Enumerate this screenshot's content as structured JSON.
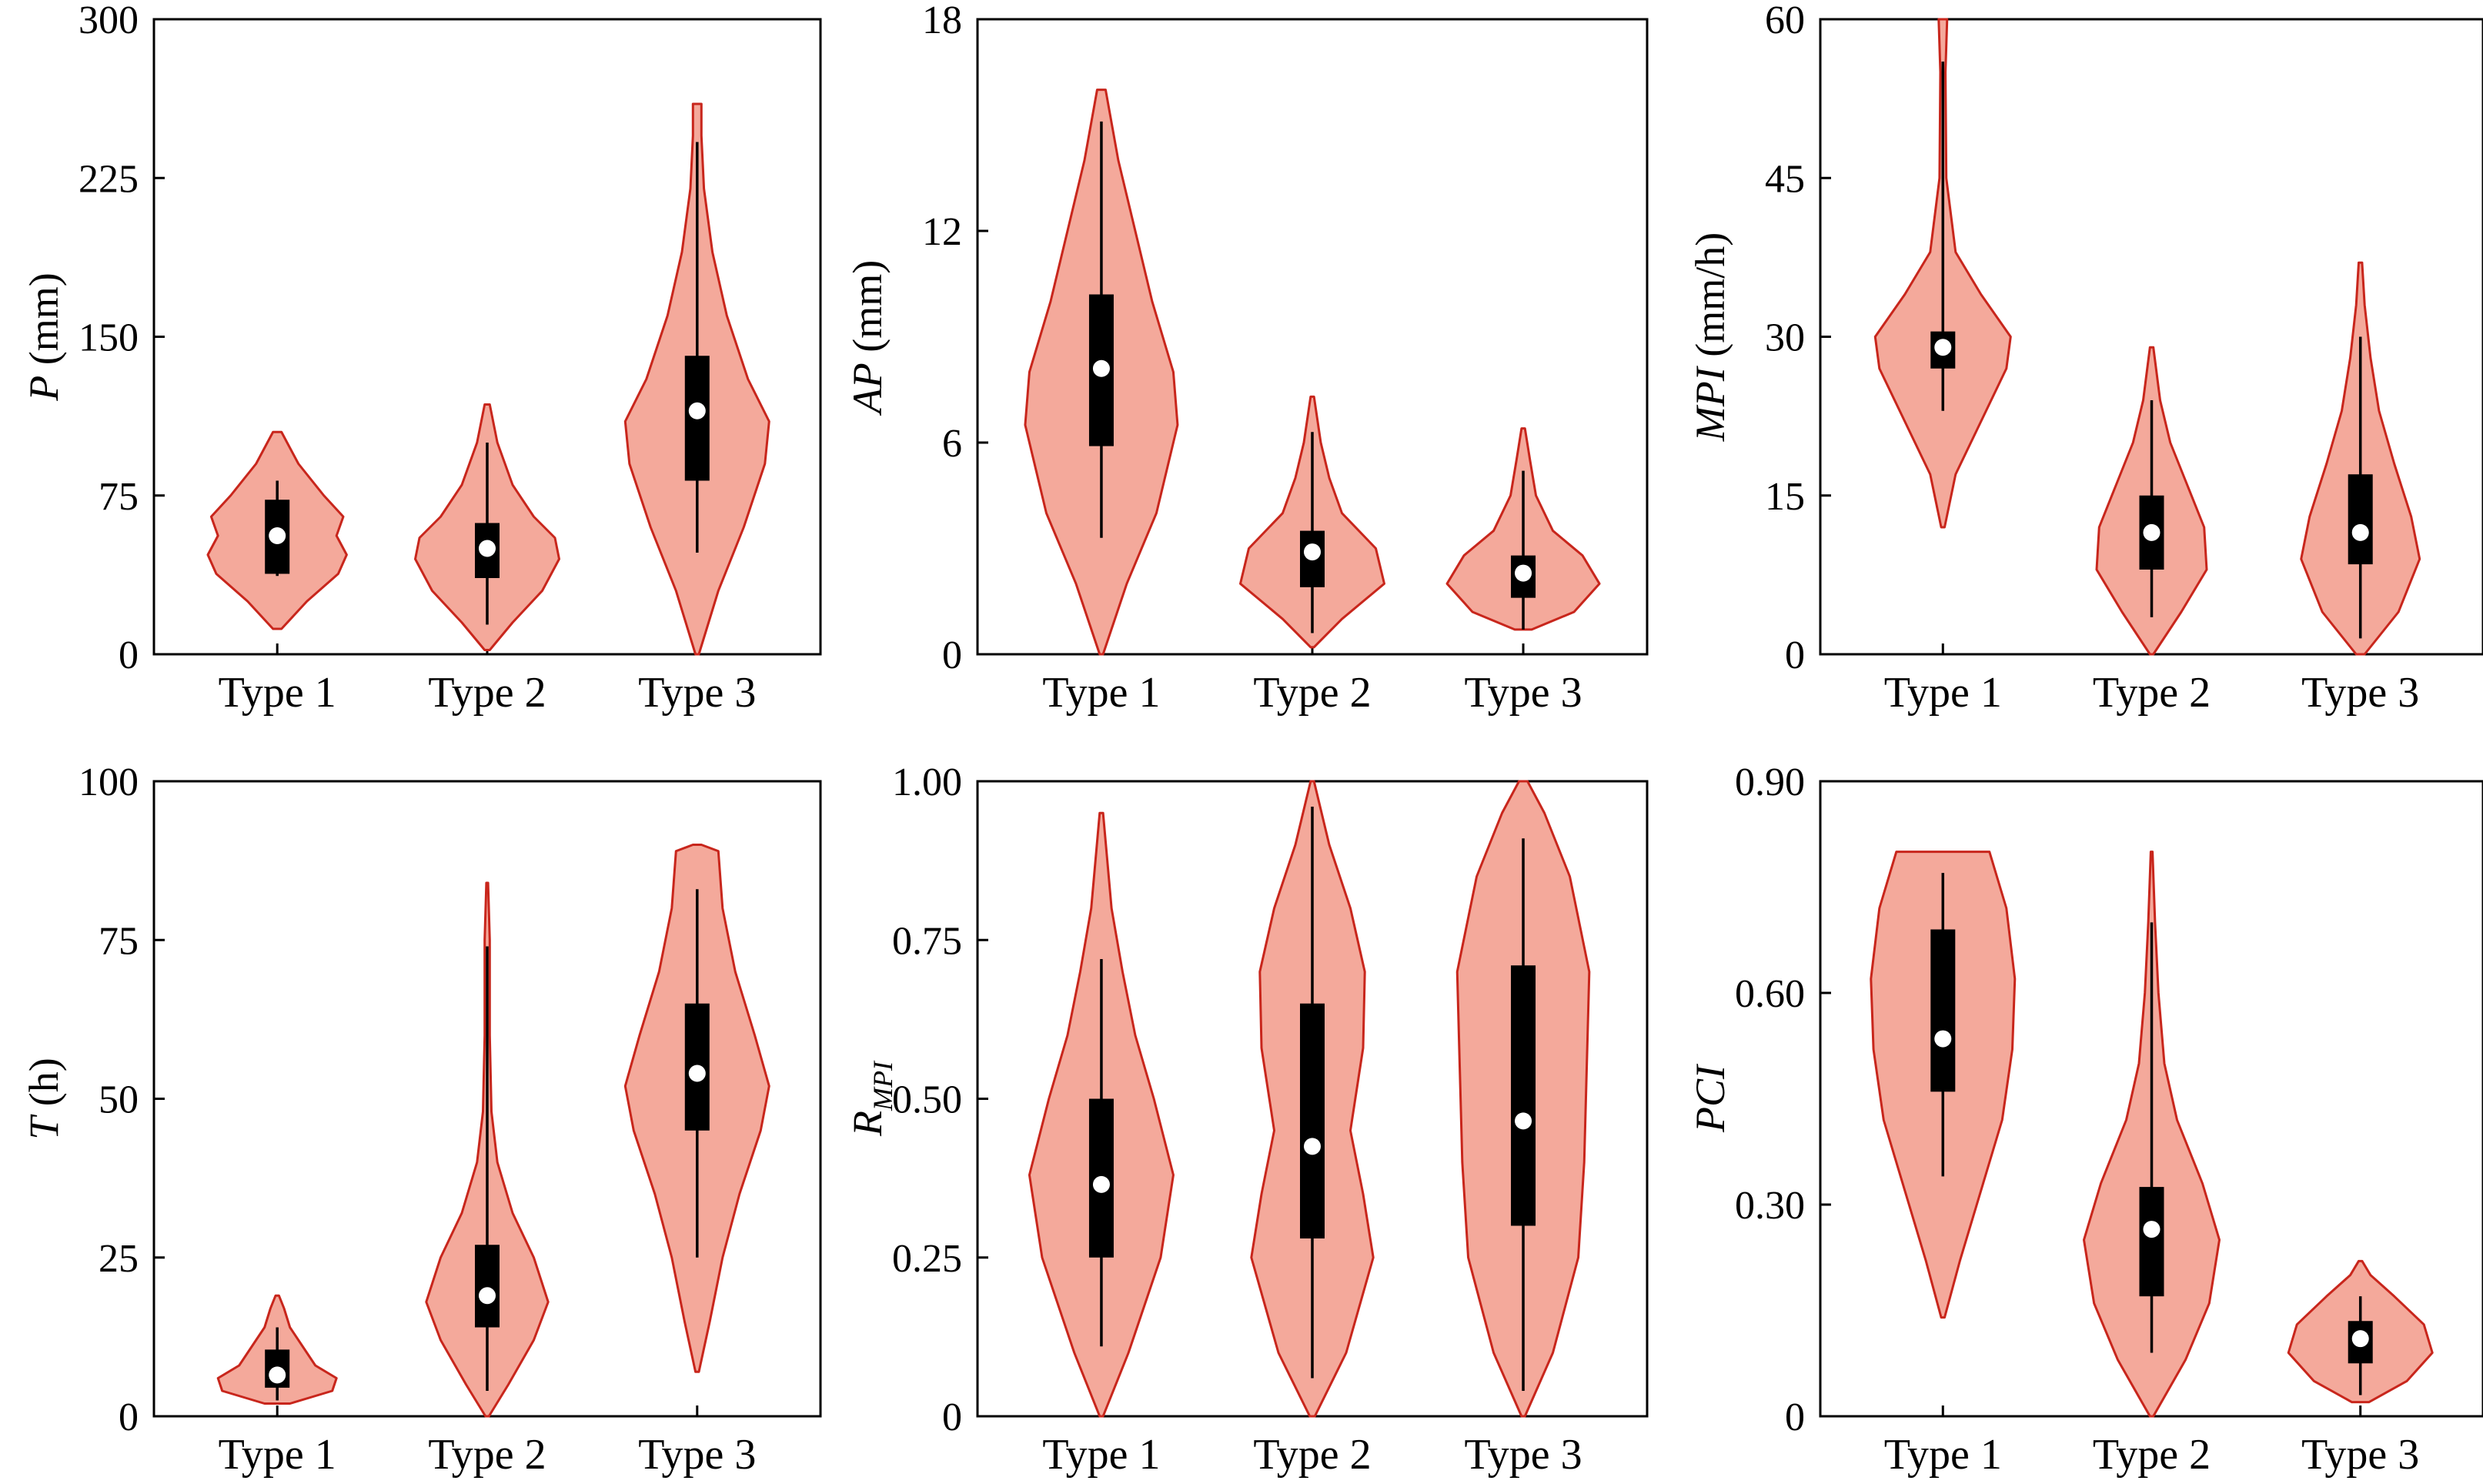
{
  "colors": {
    "violin_fill": "#f4a99b",
    "violin_edge": "#c8261c",
    "box": "#000000",
    "median_dot": "#ffffff",
    "axis": "#000000"
  },
  "chart_data": [
    {
      "type": "violin",
      "ylabel": {
        "italic": "P",
        "rest": " (mm)",
        "sub": ""
      },
      "ylim": [
        0,
        300
      ],
      "yticks": [
        "0",
        "75",
        "150",
        "225",
        "300"
      ],
      "categories": [
        "Type 1",
        "Type 2",
        "Type 3"
      ],
      "series": [
        {
          "category": "Type 1",
          "min": 12,
          "max": 105,
          "q1": 38,
          "q3": 73,
          "median": 56,
          "whisker_low": 37,
          "whisker_high": 82,
          "density": [
            [
              12,
              0.05
            ],
            [
              25,
              0.35
            ],
            [
              38,
              0.72
            ],
            [
              47,
              0.82
            ],
            [
              56,
              0.7
            ],
            [
              65,
              0.78
            ],
            [
              75,
              0.55
            ],
            [
              90,
              0.25
            ],
            [
              105,
              0.05
            ]
          ]
        },
        {
          "category": "Type 2",
          "min": 2,
          "max": 118,
          "q1": 36,
          "q3": 62,
          "median": 50,
          "whisker_low": 14,
          "whisker_high": 100,
          "density": [
            [
              2,
              0.03
            ],
            [
              15,
              0.3
            ],
            [
              30,
              0.65
            ],
            [
              45,
              0.85
            ],
            [
              55,
              0.8
            ],
            [
              65,
              0.55
            ],
            [
              80,
              0.3
            ],
            [
              100,
              0.12
            ],
            [
              118,
              0.03
            ]
          ]
        },
        {
          "category": "Type 3",
          "min": 0,
          "max": 260,
          "q1": 82,
          "q3": 141,
          "median": 115,
          "whisker_low": 48,
          "whisker_high": 242,
          "density": [
            [
              0,
              0.02
            ],
            [
              30,
              0.25
            ],
            [
              60,
              0.55
            ],
            [
              90,
              0.8
            ],
            [
              110,
              0.85
            ],
            [
              130,
              0.6
            ],
            [
              160,
              0.35
            ],
            [
              190,
              0.18
            ],
            [
              220,
              0.08
            ],
            [
              245,
              0.05
            ],
            [
              260,
              0.05
            ]
          ]
        }
      ]
    },
    {
      "type": "violin",
      "ylabel": {
        "italic": "AP",
        "rest": " (mm)",
        "sub": ""
      },
      "ylim": [
        0,
        18
      ],
      "yticks": [
        "0",
        "6",
        "12",
        "18"
      ],
      "categories": [
        "Type 1",
        "Type 2",
        "Type 3"
      ],
      "series": [
        {
          "category": "Type 1",
          "min": 0,
          "max": 16,
          "q1": 5.9,
          "q3": 10.2,
          "median": 8.1,
          "whisker_low": 3.3,
          "whisker_high": 15.1,
          "density": [
            [
              0,
              0.02
            ],
            [
              2,
              0.3
            ],
            [
              4,
              0.65
            ],
            [
              6.5,
              0.9
            ],
            [
              8,
              0.85
            ],
            [
              10,
              0.6
            ],
            [
              12,
              0.4
            ],
            [
              14,
              0.2
            ],
            [
              16,
              0.05
            ]
          ]
        },
        {
          "category": "Type 2",
          "min": 0.2,
          "max": 7.3,
          "q1": 1.9,
          "q3": 3.5,
          "median": 2.9,
          "whisker_low": 0.6,
          "whisker_high": 6.3,
          "density": [
            [
              0.2,
              0.02
            ],
            [
              1,
              0.35
            ],
            [
              2,
              0.85
            ],
            [
              3,
              0.75
            ],
            [
              4,
              0.35
            ],
            [
              5,
              0.2
            ],
            [
              6,
              0.1
            ],
            [
              7.3,
              0.02
            ]
          ]
        },
        {
          "category": "Type 3",
          "min": 0.7,
          "max": 6.4,
          "q1": 1.6,
          "q3": 2.8,
          "median": 2.3,
          "whisker_low": 0.7,
          "whisker_high": 5.2,
          "density": [
            [
              0.7,
              0.1
            ],
            [
              1.2,
              0.6
            ],
            [
              2,
              0.9
            ],
            [
              2.8,
              0.7
            ],
            [
              3.5,
              0.35
            ],
            [
              4.5,
              0.15
            ],
            [
              5.5,
              0.08
            ],
            [
              6.4,
              0.02
            ]
          ]
        }
      ]
    },
    {
      "type": "violin",
      "ylabel": {
        "italic": "MPI",
        "rest": " (mm/h)",
        "sub": ""
      },
      "ylim": [
        0,
        60
      ],
      "yticks": [
        "0",
        "15",
        "30",
        "45",
        "60"
      ],
      "categories": [
        "Type 1",
        "Type 2",
        "Type 3"
      ],
      "series": [
        {
          "category": "Type 1",
          "min": 12,
          "max": 60,
          "q1": 27,
          "q3": 30.5,
          "median": 29,
          "whisker_low": 23,
          "whisker_high": 56,
          "density": [
            [
              12,
              0.02
            ],
            [
              17,
              0.15
            ],
            [
              22,
              0.45
            ],
            [
              27,
              0.75
            ],
            [
              30,
              0.8
            ],
            [
              34,
              0.45
            ],
            [
              38,
              0.15
            ],
            [
              45,
              0.04
            ],
            [
              55,
              0.03
            ],
            [
              60,
              0.05
            ]
          ]
        },
        {
          "category": "Type 2",
          "min": 0,
          "max": 29,
          "q1": 8,
          "q3": 15,
          "median": 11.5,
          "whisker_low": 3.5,
          "whisker_high": 24,
          "density": [
            [
              0,
              0.02
            ],
            [
              4,
              0.35
            ],
            [
              8,
              0.65
            ],
            [
              12,
              0.62
            ],
            [
              16,
              0.42
            ],
            [
              20,
              0.22
            ],
            [
              24,
              0.1
            ],
            [
              29,
              0.02
            ]
          ]
        },
        {
          "category": "Type 3",
          "min": 0,
          "max": 37,
          "q1": 8.5,
          "q3": 17,
          "median": 11.5,
          "whisker_low": 1.5,
          "whisker_high": 30,
          "density": [
            [
              0,
              0.05
            ],
            [
              4,
              0.45
            ],
            [
              9,
              0.7
            ],
            [
              13,
              0.6
            ],
            [
              18,
              0.4
            ],
            [
              23,
              0.22
            ],
            [
              28,
              0.12
            ],
            [
              33,
              0.05
            ],
            [
              37,
              0.02
            ]
          ]
        }
      ]
    },
    {
      "type": "violin",
      "ylabel": {
        "italic": "T",
        "rest": " (h)",
        "sub": ""
      },
      "ylim": [
        0,
        100
      ],
      "yticks": [
        "0",
        "25",
        "50",
        "75",
        "100"
      ],
      "categories": [
        "Type 1",
        "Type 2",
        "Type 3"
      ],
      "series": [
        {
          "category": "Type 1",
          "min": 2,
          "max": 19,
          "q1": 4.5,
          "q3": 10.5,
          "median": 6.5,
          "whisker_low": 2.5,
          "whisker_high": 14,
          "density": [
            [
              2,
              0.15
            ],
            [
              4,
              0.65
            ],
            [
              6,
              0.7
            ],
            [
              8,
              0.45
            ],
            [
              11,
              0.3
            ],
            [
              14,
              0.15
            ],
            [
              17,
              0.08
            ],
            [
              19,
              0.02
            ]
          ]
        },
        {
          "category": "Type 2",
          "min": 0,
          "max": 84,
          "q1": 14,
          "q3": 27,
          "median": 19,
          "whisker_low": 4,
          "whisker_high": 74,
          "density": [
            [
              0,
              0.02
            ],
            [
              5,
              0.25
            ],
            [
              12,
              0.55
            ],
            [
              18,
              0.72
            ],
            [
              25,
              0.55
            ],
            [
              32,
              0.3
            ],
            [
              40,
              0.12
            ],
            [
              48,
              0.05
            ],
            [
              60,
              0.03
            ],
            [
              75,
              0.03
            ],
            [
              84,
              0.01
            ]
          ]
        },
        {
          "category": "Type 3",
          "min": 7,
          "max": 90,
          "q1": 45,
          "q3": 65,
          "median": 54,
          "whisker_low": 25,
          "whisker_high": 83,
          "density": [
            [
              7,
              0.02
            ],
            [
              15,
              0.15
            ],
            [
              25,
              0.3
            ],
            [
              35,
              0.5
            ],
            [
              45,
              0.75
            ],
            [
              52,
              0.85
            ],
            [
              60,
              0.68
            ],
            [
              70,
              0.45
            ],
            [
              80,
              0.3
            ],
            [
              89,
              0.25
            ],
            [
              90,
              0.05
            ]
          ]
        }
      ]
    },
    {
      "type": "violin",
      "ylabel": {
        "italic": "R",
        "rest": "",
        "sub": "MPI"
      },
      "ylim": [
        0,
        1
      ],
      "yticks": [
        "0",
        "0.25",
        "0.50",
        "0.75",
        "1.00"
      ],
      "categories": [
        "Type 1",
        "Type 2",
        "Type 3"
      ],
      "series": [
        {
          "category": "Type 1",
          "min": 0,
          "max": 0.95,
          "q1": 0.25,
          "q3": 0.5,
          "median": 0.365,
          "whisker_low": 0.11,
          "whisker_high": 0.72,
          "density": [
            [
              0,
              0.02
            ],
            [
              0.1,
              0.32
            ],
            [
              0.25,
              0.7
            ],
            [
              0.38,
              0.85
            ],
            [
              0.5,
              0.62
            ],
            [
              0.6,
              0.4
            ],
            [
              0.7,
              0.25
            ],
            [
              0.8,
              0.12
            ],
            [
              0.95,
              0.02
            ]
          ]
        },
        {
          "category": "Type 2",
          "min": 0,
          "max": 1.0,
          "q1": 0.28,
          "q3": 0.65,
          "median": 0.425,
          "whisker_low": 0.06,
          "whisker_high": 0.96,
          "density": [
            [
              0,
              0.03
            ],
            [
              0.1,
              0.4
            ],
            [
              0.25,
              0.72
            ],
            [
              0.35,
              0.6
            ],
            [
              0.45,
              0.45
            ],
            [
              0.58,
              0.6
            ],
            [
              0.7,
              0.62
            ],
            [
              0.8,
              0.45
            ],
            [
              0.9,
              0.2
            ],
            [
              1.0,
              0.02
            ]
          ]
        },
        {
          "category": "Type 3",
          "min": 0,
          "max": 1.0,
          "q1": 0.3,
          "q3": 0.71,
          "median": 0.465,
          "whisker_low": 0.04,
          "whisker_high": 0.91,
          "density": [
            [
              0,
              0.02
            ],
            [
              0.1,
              0.35
            ],
            [
              0.25,
              0.65
            ],
            [
              0.4,
              0.72
            ],
            [
              0.55,
              0.75
            ],
            [
              0.7,
              0.78
            ],
            [
              0.85,
              0.55
            ],
            [
              0.95,
              0.25
            ],
            [
              1.0,
              0.05
            ]
          ]
        }
      ]
    },
    {
      "type": "violin",
      "ylabel": {
        "italic": "PCI",
        "rest": "",
        "sub": ""
      },
      "ylim": [
        0,
        0.9
      ],
      "yticks": [
        "0",
        "0.30",
        "0.60",
        "0.90"
      ],
      "categories": [
        "Type 1",
        "Type 2",
        "Type 3"
      ],
      "series": [
        {
          "category": "Type 1",
          "min": 0.14,
          "max": 0.8,
          "q1": 0.46,
          "q3": 0.69,
          "median": 0.535,
          "whisker_low": 0.34,
          "whisker_high": 0.77,
          "density": [
            [
              0.14,
              0.02
            ],
            [
              0.22,
              0.2
            ],
            [
              0.32,
              0.45
            ],
            [
              0.42,
              0.7
            ],
            [
              0.52,
              0.82
            ],
            [
              0.62,
              0.85
            ],
            [
              0.72,
              0.75
            ],
            [
              0.8,
              0.55
            ]
          ]
        },
        {
          "category": "Type 2",
          "min": 0,
          "max": 0.8,
          "q1": 0.17,
          "q3": 0.325,
          "median": 0.265,
          "whisker_low": 0.09,
          "whisker_high": 0.7,
          "density": [
            [
              0,
              0.02
            ],
            [
              0.08,
              0.4
            ],
            [
              0.16,
              0.68
            ],
            [
              0.25,
              0.8
            ],
            [
              0.33,
              0.6
            ],
            [
              0.42,
              0.3
            ],
            [
              0.5,
              0.15
            ],
            [
              0.6,
              0.08
            ],
            [
              0.7,
              0.04
            ],
            [
              0.8,
              0.01
            ]
          ]
        },
        {
          "category": "Type 3",
          "min": 0.02,
          "max": 0.22,
          "q1": 0.075,
          "q3": 0.135,
          "median": 0.11,
          "whisker_low": 0.03,
          "whisker_high": 0.17,
          "density": [
            [
              0.02,
              0.1
            ],
            [
              0.05,
              0.55
            ],
            [
              0.09,
              0.85
            ],
            [
              0.13,
              0.75
            ],
            [
              0.17,
              0.4
            ],
            [
              0.2,
              0.12
            ],
            [
              0.22,
              0.02
            ]
          ]
        }
      ]
    }
  ]
}
